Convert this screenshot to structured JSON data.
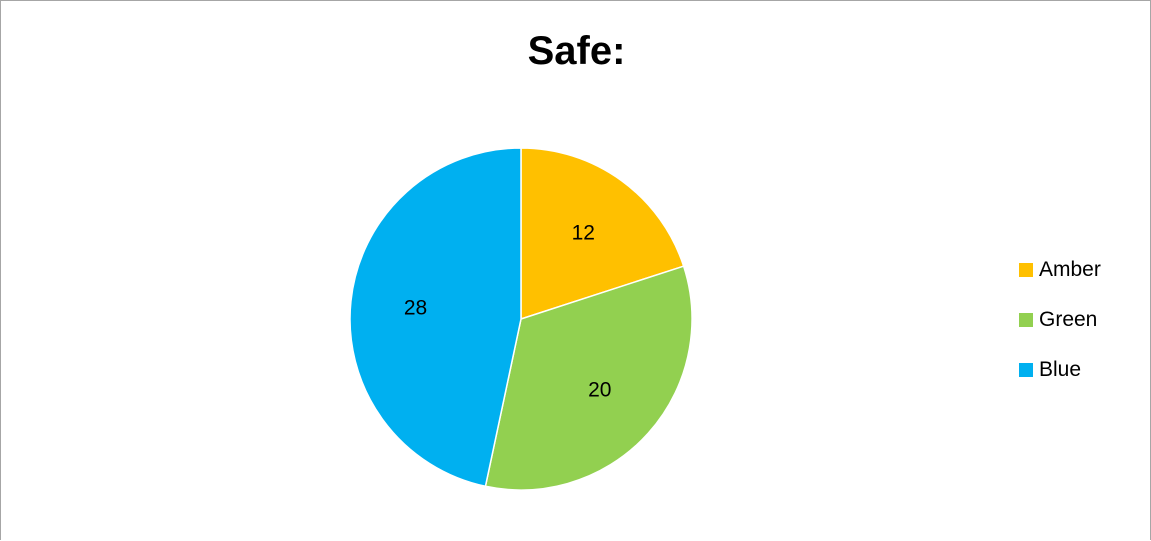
{
  "chart_data": {
    "type": "pie",
    "title": "Safe:",
    "categories": [
      "Amber",
      "Green",
      "Blue"
    ],
    "values": [
      12,
      20,
      28
    ],
    "colors": [
      "#ffc000",
      "#92d050",
      "#00b0f0"
    ],
    "data_labels": [
      "12",
      "20",
      "28"
    ],
    "legend": "right",
    "start_angle_deg": 0,
    "direction": "clockwise"
  }
}
